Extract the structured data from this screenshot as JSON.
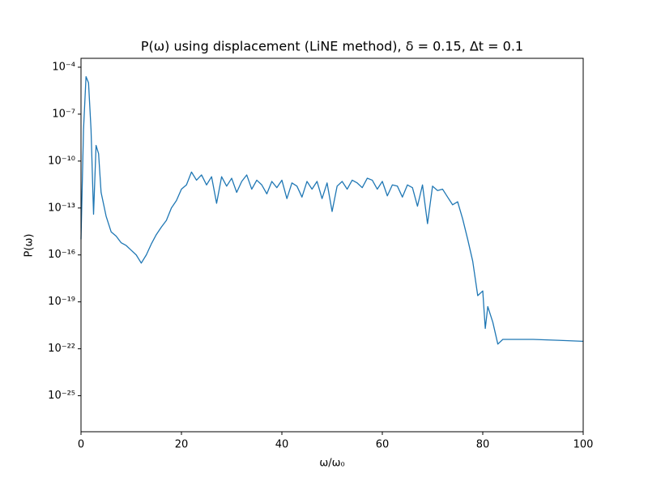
{
  "chart_data": {
    "type": "line",
    "title": "P(ω) using displacement (LiNE method), δ = 0.15, Δt = 0.1",
    "x_label": "ω/ω₀",
    "y_label": "P(ω)",
    "x": [
      0,
      0.5,
      1,
      1.5,
      2,
      2.5,
      3,
      3.5,
      4,
      5,
      6,
      7,
      8,
      9,
      10,
      11,
      12,
      13,
      14,
      15,
      16,
      17,
      18,
      19,
      20,
      21,
      22,
      23,
      24,
      25,
      26,
      27,
      28,
      29,
      30,
      31,
      32,
      33,
      34,
      35,
      36,
      37,
      38,
      39,
      40,
      41,
      42,
      43,
      44,
      45,
      46,
      47,
      48,
      49,
      50,
      51,
      52,
      53,
      54,
      55,
      56,
      57,
      58,
      59,
      60,
      61,
      62,
      63,
      64,
      65,
      66,
      67,
      68,
      69,
      70,
      71,
      72,
      73,
      74,
      75,
      76,
      77,
      78,
      79,
      80,
      80.5,
      81,
      82,
      83,
      84,
      86,
      90,
      95,
      100
    ],
    "values": [
      1e-15,
      1e-08,
      2.5e-05,
      1e-05,
      1e-08,
      4e-14,
      1e-09,
      3e-10,
      1e-12,
      3e-14,
      3e-15,
      1.6e-15,
      6e-16,
      4e-16,
      2e-16,
      1e-16,
      3e-17,
      1e-16,
      5e-16,
      2e-15,
      6e-15,
      1.6e-14,
      1e-13,
      3e-13,
      1.6e-12,
      3e-12,
      2e-11,
      6e-12,
      1.3e-11,
      3e-12,
      1e-11,
      2e-13,
      1e-11,
      2.5e-12,
      8e-12,
      1e-12,
      5e-12,
      1.3e-11,
      1.6e-12,
      6e-12,
      3e-12,
      8e-13,
      5e-12,
      2e-12,
      6e-12,
      4e-13,
      4e-12,
      2.5e-12,
      5e-13,
      5e-12,
      1.6e-12,
      5e-12,
      4e-13,
      4e-12,
      6e-14,
      2.5e-12,
      5e-12,
      1.6e-12,
      6e-12,
      4e-12,
      2e-12,
      8e-12,
      6e-12,
      1.6e-12,
      5e-12,
      6e-13,
      3e-12,
      2.5e-12,
      5e-13,
      3e-12,
      2e-12,
      1.3e-13,
      3e-12,
      1e-14,
      2.5e-12,
      1.3e-12,
      1.6e-12,
      5e-13,
      1.6e-13,
      2.5e-13,
      2e-14,
      1e-15,
      4e-17,
      2.5e-19,
      5e-19,
      2e-21,
      5e-20,
      5e-21,
      2e-22,
      4e-22,
      4e-22,
      4e-22,
      3.5e-22,
      3e-22
    ],
    "color": "#1f77b4",
    "xlim": [
      0,
      100
    ],
    "xticks": [
      0,
      20,
      40,
      60,
      80,
      100
    ],
    "ylim": [
      5e-28,
      0.00037
    ],
    "yscale": "log",
    "yticks": [
      {
        "value": 1e-25,
        "label": "10⁻²⁵"
      },
      {
        "value": 1e-22,
        "label": "10⁻²²"
      },
      {
        "value": 1e-19,
        "label": "10⁻¹⁹"
      },
      {
        "value": 1e-16,
        "label": "10⁻¹⁶"
      },
      {
        "value": 1e-13,
        "label": "10⁻¹³"
      },
      {
        "value": 1e-10,
        "label": "10⁻¹⁰"
      },
      {
        "value": 1e-07,
        "label": "10⁻⁷"
      },
      {
        "value": 0.0001,
        "label": "10⁻⁴"
      }
    ]
  }
}
